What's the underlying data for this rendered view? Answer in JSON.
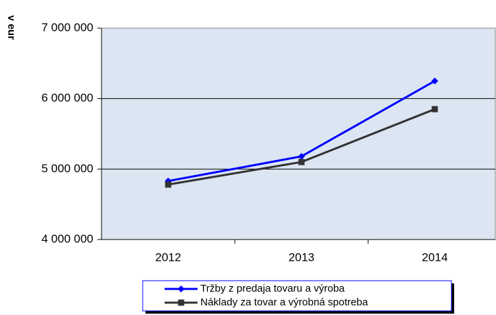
{
  "chart_data": {
    "type": "line",
    "y_label": "v eur",
    "categories": [
      "2012",
      "2013",
      "2014"
    ],
    "series": [
      {
        "name": "Tržby z predaja tovaru a výroba",
        "color": "#0000ff",
        "marker": "diamond",
        "values": [
          4830000,
          5180000,
          6250000
        ]
      },
      {
        "name": "Náklady za tovar a výrobná spotreba",
        "color": "#333333",
        "marker": "square",
        "values": [
          4780000,
          5100000,
          5850000
        ]
      }
    ],
    "ylim": [
      4000000,
      7000000
    ],
    "yticks": [
      {
        "value": 4000000,
        "label": "4 000 000"
      },
      {
        "value": 5000000,
        "label": "5 000 000"
      },
      {
        "value": 6000000,
        "label": "6 000 000"
      },
      {
        "value": 7000000,
        "label": "7 000 000"
      }
    ],
    "grid": true,
    "legend": "bottom"
  }
}
